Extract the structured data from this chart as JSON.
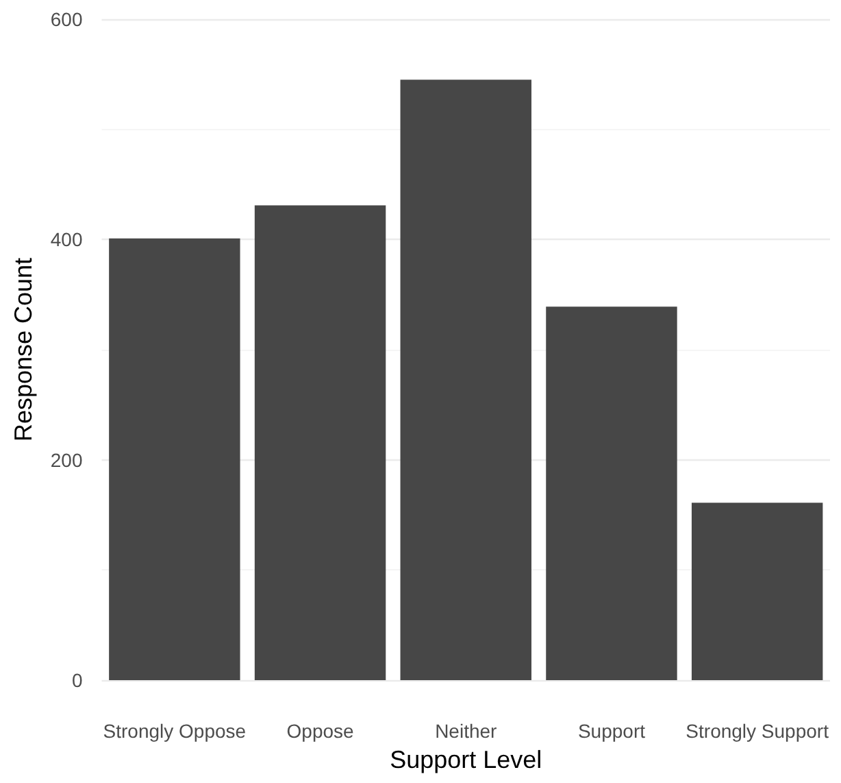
{
  "chart_data": {
    "type": "bar",
    "xlabel": "Support Level",
    "ylabel": "Response Count",
    "categories": [
      "Strongly Oppose",
      "Oppose",
      "Neither",
      "Support",
      "Strongly Support"
    ],
    "values": [
      401,
      431,
      545,
      339,
      161
    ],
    "color": "#474747",
    "ylim": [
      0,
      600
    ],
    "yticks": [
      0,
      200,
      400,
      600
    ],
    "grid": "y"
  }
}
